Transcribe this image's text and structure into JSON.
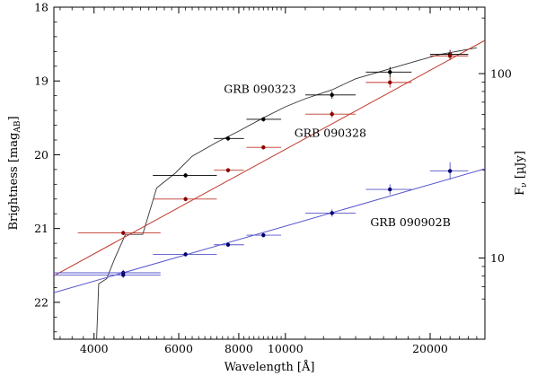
{
  "chart_data": {
    "type": "scatter",
    "xlabel": "Wavelength [Å]",
    "xscale": "log",
    "xlim": [
      3300,
      26000
    ],
    "xticks": [
      {
        "value": 4000,
        "label": "4000"
      },
      {
        "value": 6000,
        "label": "6000"
      },
      {
        "value": 8000,
        "label": "8000"
      },
      {
        "value": 10000,
        "label": "10000"
      },
      {
        "value": 20000,
        "label": "20000"
      }
    ],
    "ylabel_left": "Brightness [mag",
    "ylabel_left_sub": "AB",
    "ylabel_left_close": "]",
    "ylim_left": [
      22.5,
      18.0
    ],
    "yticks_left": [
      {
        "value": 18,
        "label": "18"
      },
      {
        "value": 19,
        "label": "19"
      },
      {
        "value": 20,
        "label": "20"
      },
      {
        "value": 21,
        "label": "21"
      },
      {
        "value": 22,
        "label": "22"
      }
    ],
    "ylabel_right": "F",
    "ylabel_right_sub": "ν",
    "ylabel_right_units": " [µJy]",
    "yticks_right": [
      {
        "value": 10,
        "label": "10"
      },
      {
        "value": 100,
        "label": "100"
      }
    ],
    "grid": false,
    "series": [
      {
        "name": "GRB 090323",
        "color": "#000000",
        "points": [
          {
            "x": 6200,
            "y": 20.28,
            "xerr": [
              5300,
              7200
            ],
            "yerr": 0.03
          },
          {
            "x": 7600,
            "y": 19.78,
            "xerr": [
              7100,
              8200
            ],
            "yerr": 0.03
          },
          {
            "x": 9000,
            "y": 19.52,
            "xerr": [
              8300,
              9800
            ],
            "yerr": 0.03
          },
          {
            "x": 12500,
            "y": 19.19,
            "xerr": [
              11000,
              14000
            ],
            "yerr": 0.05
          },
          {
            "x": 16500,
            "y": 18.88,
            "xerr": [
              14700,
              18300
            ],
            "yerr": 0.07
          },
          {
            "x": 22000,
            "y": 18.64,
            "xerr": [
              20000,
              24000
            ],
            "yerr": 0.06
          }
        ],
        "model_curve": [
          [
            4050,
            22.5
          ],
          [
            4090,
            21.75
          ],
          [
            4250,
            21.68
          ],
          [
            4420,
            21.4
          ],
          [
            4650,
            21.08
          ],
          [
            5050,
            21.08
          ],
          [
            5400,
            20.45
          ],
          [
            5900,
            20.25
          ],
          [
            6400,
            20.02
          ],
          [
            7200,
            19.83
          ],
          [
            8000,
            19.68
          ],
          [
            9000,
            19.5
          ],
          [
            10000,
            19.35
          ],
          [
            11000,
            19.24
          ],
          [
            12500,
            19.12
          ],
          [
            14000,
            18.97
          ],
          [
            16000,
            18.86
          ],
          [
            18500,
            18.74
          ],
          [
            21000,
            18.64
          ],
          [
            25000,
            18.55
          ]
        ],
        "model_start": [
          3950,
          22.9
        ]
      },
      {
        "name": "GRB 090328",
        "color": "#8b0000",
        "line_color": "#c0392b",
        "points": [
          {
            "x": 4600,
            "y": 21.06,
            "xerr": [
              3700,
              5500
            ],
            "yerr": 0.03
          },
          {
            "x": 6200,
            "y": 20.6,
            "xerr": [
              5300,
              7200
            ],
            "yerr": 0.03
          },
          {
            "x": 7600,
            "y": 20.21,
            "xerr": [
              7100,
              8200
            ],
            "yerr": 0.03
          },
          {
            "x": 9000,
            "y": 19.9,
            "xerr": [
              8300,
              9800
            ],
            "yerr": 0.03
          },
          {
            "x": 12500,
            "y": 19.45,
            "xerr": [
              11000,
              14000
            ],
            "yerr": 0.05
          },
          {
            "x": 16500,
            "y": 19.02,
            "xerr": [
              14700,
              18300
            ],
            "yerr": 0.07
          },
          {
            "x": 22000,
            "y": 18.66,
            "xerr": [
              20000,
              24000
            ],
            "yerr": 0.06
          }
        ],
        "fit_line": [
          [
            3300,
            21.64
          ],
          [
            26000,
            18.45
          ]
        ]
      },
      {
        "name": "GRB 090902B",
        "color": "#00006e",
        "line_color": "#5555cc",
        "points": [
          {
            "x": 4600,
            "y": 21.6,
            "xerr": [
              3300,
              5500
            ],
            "yerr": 0.04
          },
          {
            "x": 4600,
            "y": 21.63,
            "xerr": [
              3300,
              5500
            ],
            "yerr": 0.04
          },
          {
            "x": 6200,
            "y": 21.35,
            "xerr": [
              5300,
              7200
            ],
            "yerr": 0.03
          },
          {
            "x": 7600,
            "y": 21.22,
            "xerr": [
              7100,
              8200
            ],
            "yerr": 0.03
          },
          {
            "x": 9000,
            "y": 21.09,
            "xerr": [
              8300,
              9800
            ],
            "yerr": 0.03
          },
          {
            "x": 12500,
            "y": 20.79,
            "xerr": [
              11000,
              14000
            ],
            "yerr": 0.05
          },
          {
            "x": 16500,
            "y": 20.47,
            "xerr": [
              14700,
              18300
            ],
            "yerr": 0.07
          },
          {
            "x": 22000,
            "y": 20.22,
            "xerr": [
              20000,
              24000
            ],
            "yerr": 0.12
          }
        ],
        "fit_line": [
          [
            3300,
            21.87
          ],
          [
            26000,
            20.19
          ]
        ]
      }
    ],
    "annotations": [
      {
        "series": "GRB 090323",
        "text": "GRB 090323",
        "x": 8850,
        "y": 19.16,
        "anchor": "middle"
      },
      {
        "series": "GRB 090328",
        "text": "GRB 090328",
        "x": 12400,
        "y": 19.76,
        "anchor": "middle"
      },
      {
        "series": "GRB 090902B",
        "text": "GRB 090902B",
        "x": 18200,
        "y": 20.97,
        "anchor": "middle"
      }
    ]
  }
}
